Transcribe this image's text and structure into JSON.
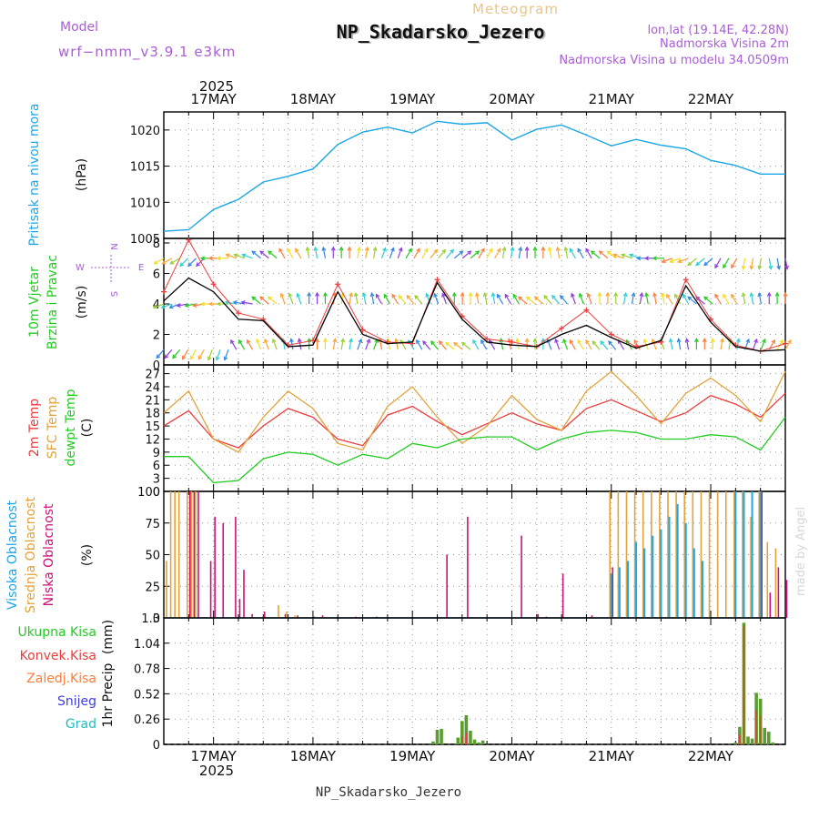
{
  "header": {
    "model_label": "Model",
    "model_name": "wrf−nmm_v3.9.1  e3km",
    "meteogram": "Meteogram",
    "title": "NP_Skadarsko_Jezero",
    "lonlat": "lon,lat (19.14E, 42.28N)",
    "altitude": "Nadmorska Visina 2m",
    "model_altitude": "Nadmorska Visina u modelu 34.0509m",
    "footer": "NP_Skadarsko_Jezero",
    "credit": "made by Angel",
    "year": "2025"
  },
  "colors": {
    "pressure": "#1ca7e6",
    "wind_speed_smooth": "#000000",
    "wind_speed_raw": "#ee3b3b",
    "t2m": "#ee3b3b",
    "sfc": "#e3a23a",
    "dewpt": "#22cc22",
    "cloud_high": "#1ca7e6",
    "cloud_mid": "#e3a23a",
    "cloud_low": "#cc1177",
    "precip_total": "#5a9e2e",
    "precip_conv": "#ee3b3b"
  },
  "chart_data": [
    {
      "type": "line",
      "id": "pressure",
      "ylabel_lines": [
        "Pritisak na nivou mora"
      ],
      "unit": "(hPa)",
      "ylim": [
        1005,
        1022.5
      ],
      "yticks": [
        "1005",
        "1010",
        "1015",
        "1020"
      ],
      "x_days": [
        "17MAY",
        "18MAY",
        "19MAY",
        "20MAY",
        "21MAY",
        "22MAY"
      ],
      "x": [
        0,
        6,
        12,
        18,
        24,
        30,
        36,
        42,
        48,
        54,
        60,
        66,
        72,
        78,
        84,
        90,
        96,
        102,
        108,
        114,
        120,
        126,
        132,
        138,
        144,
        150
      ],
      "series": [
        {
          "name": "MSLP",
          "values": [
            1006.0,
            1006.2,
            1009.0,
            1010.4,
            1012.8,
            1013.6,
            1014.6,
            1018.0,
            1019.7,
            1020.4,
            1019.6,
            1021.2,
            1020.8,
            1021.0,
            1018.6,
            1020.1,
            1020.7,
            1019.3,
            1017.8,
            1018.7,
            1017.9,
            1017.4,
            1015.8,
            1015.1,
            1013.9,
            1013.9
          ]
        }
      ]
    },
    {
      "type": "line",
      "id": "wind",
      "ylabel_lines": [
        "10m Vjetar",
        "Brzina i Pravac"
      ],
      "unit": "(m/s)",
      "ylim": [
        0,
        8.3
      ],
      "yticks": [
        "0",
        "2",
        "4",
        "6",
        "8"
      ],
      "compass": [
        "N",
        "W",
        "E",
        "S"
      ],
      "x": [
        0,
        6,
        12,
        18,
        24,
        30,
        36,
        42,
        48,
        54,
        60,
        66,
        72,
        78,
        84,
        90,
        96,
        102,
        108,
        114,
        120,
        126,
        132,
        138,
        144,
        150
      ],
      "series": [
        {
          "name": "speed",
          "values": [
            4.2,
            5.7,
            4.8,
            3.0,
            2.9,
            1.2,
            1.3,
            4.8,
            2.0,
            1.4,
            1.5,
            5.4,
            3.0,
            1.5,
            1.3,
            1.2,
            2.0,
            2.6,
            1.8,
            1.1,
            1.6,
            5.2,
            2.8,
            1.2,
            0.9,
            1.0
          ]
        },
        {
          "name": "raw",
          "values": [
            4.8,
            8.2,
            5.3,
            3.4,
            3.0,
            1.3,
            1.6,
            5.3,
            2.3,
            1.5,
            1.4,
            5.6,
            3.2,
            1.7,
            1.5,
            1.2,
            2.4,
            3.6,
            2.0,
            1.2,
            1.5,
            5.6,
            3.0,
            1.3,
            0.9,
            1.4
          ]
        }
      ],
      "arrow_rows": [
        {
          "speed": 7.0,
          "angles": [
            210,
            225,
            180,
            160,
            140,
            120,
            100,
            90,
            80,
            70,
            60,
            50,
            40,
            60,
            80,
            90,
            100,
            120,
            140,
            160,
            180,
            200,
            220,
            240,
            260,
            280
          ]
        },
        {
          "speed": 4.0,
          "angles": [
            200,
            190,
            180,
            170,
            140,
            110,
            90,
            80,
            100,
            120,
            130,
            110,
            90,
            100,
            120,
            140,
            130,
            110,
            90,
            80,
            100,
            120,
            140,
            120,
            100,
            90
          ]
        },
        {
          "speed": 1.0,
          "angles": [
            230,
            240,
            250,
            120,
            110,
            100,
            90,
            80,
            70,
            100,
            120,
            130,
            140,
            120,
            100,
            90,
            110,
            120,
            130,
            120,
            110,
            100,
            90,
            80,
            70,
            60
          ]
        }
      ]
    },
    {
      "type": "line",
      "id": "temperature",
      "ylabel_lines": [
        "2m Temp",
        "SFC Temp",
        "dewpt Temp"
      ],
      "unit": "(C)",
      "ylim": [
        0,
        29
      ],
      "yticks": [
        "0",
        "3",
        "6",
        "9",
        "12",
        "15",
        "18",
        "21",
        "24",
        "27"
      ],
      "x": [
        0,
        6,
        12,
        18,
        24,
        30,
        36,
        42,
        48,
        54,
        60,
        66,
        72,
        78,
        84,
        90,
        96,
        102,
        108,
        114,
        120,
        126,
        132,
        138,
        144,
        150
      ],
      "series": [
        {
          "name": "2m Temp",
          "values": [
            15.0,
            18.5,
            12.0,
            10.0,
            15.0,
            19.0,
            17.0,
            12.0,
            10.5,
            17.5,
            19.5,
            16.0,
            13.0,
            15.5,
            18.0,
            15.5,
            14.0,
            19.0,
            21.0,
            18.5,
            16.0,
            18.0,
            22.0,
            20.0,
            17.0,
            22.5
          ]
        },
        {
          "name": "SFC Temp",
          "values": [
            18.0,
            23.0,
            12.0,
            9.0,
            17.0,
            23.0,
            19.0,
            11.0,
            9.5,
            19.5,
            24.0,
            17.0,
            11.0,
            15.0,
            22.0,
            16.5,
            14.0,
            23.0,
            27.5,
            22.0,
            15.5,
            22.5,
            26.0,
            22.0,
            16.0,
            27.5
          ]
        },
        {
          "name": "dewpt Temp",
          "values": [
            8.0,
            8.0,
            2.0,
            2.5,
            7.5,
            9.0,
            8.5,
            6.0,
            8.5,
            7.5,
            11.0,
            10.0,
            12.0,
            12.5,
            12.5,
            9.5,
            12.0,
            13.5,
            14.0,
            13.5,
            12.0,
            12.0,
            13.0,
            12.5,
            9.5,
            17.0
          ]
        }
      ]
    },
    {
      "type": "bar",
      "id": "clouds",
      "ylabel_lines": [
        "Visoka Oblacnost",
        "Srednja Oblacnost",
        "Niska Oblacnost"
      ],
      "unit": "(%)",
      "ylim": [
        0,
        100
      ],
      "yticks": [
        "0",
        "25",
        "50",
        "75",
        "100"
      ],
      "series": [
        {
          "name": "Niska",
          "x": [
            6,
            7,
            8,
            11,
            12,
            14,
            17,
            18,
            19,
            21,
            24,
            29,
            32,
            36,
            38,
            46,
            51,
            68,
            73,
            86,
            90,
            92,
            96,
            103,
            108,
            144,
            146,
            148,
            150
          ],
          "values": [
            100,
            100,
            100,
            45,
            80,
            75,
            80,
            15,
            38,
            3,
            5,
            3,
            2,
            1,
            2,
            1,
            1,
            50,
            80,
            65,
            3,
            1,
            35,
            2,
            40,
            100,
            20,
            40,
            30
          ]
        },
        {
          "name": "Srednja",
          "x": [
            1,
            2,
            3,
            4,
            6,
            7,
            8,
            28,
            30,
            32,
            108,
            110,
            112,
            114,
            116,
            118,
            120,
            122,
            124,
            126,
            128,
            130,
            132,
            134,
            136,
            138,
            140,
            142,
            144,
            146,
            148
          ],
          "values": [
            45,
            100,
            100,
            100,
            100,
            100,
            100,
            10,
            5,
            2,
            100,
            100,
            100,
            100,
            100,
            100,
            100,
            100,
            100,
            100,
            100,
            100,
            100,
            100,
            100,
            100,
            100,
            80,
            100,
            60,
            55
          ]
        },
        {
          "name": "Visoka",
          "x": [
            108,
            110,
            112,
            114,
            116,
            118,
            120,
            122,
            124,
            126,
            128,
            130,
            138,
            140,
            142,
            144
          ],
          "values": [
            35,
            40,
            45,
            60,
            55,
            65,
            70,
            80,
            90,
            75,
            55,
            45,
            100,
            100,
            100,
            100
          ]
        }
      ]
    },
    {
      "type": "bar",
      "id": "precip",
      "ylabel_lines": [
        "1hr Precip",
        "(mm)"
      ],
      "legend": [
        "Ukupna Kisa",
        "Konvek.Kisa",
        "Zaledj.Kisa",
        "Snijeg",
        "Grad"
      ],
      "ylim": [
        0,
        1.3
      ],
      "yticks": [
        "0",
        "0.26",
        "0.52",
        "0.78",
        "1.04",
        "1.3"
      ],
      "series": [
        {
          "name": "Ukupna Kisa",
          "x": [
            65,
            66,
            67,
            71,
            72,
            73,
            74,
            75,
            76,
            77,
            138,
            139,
            140,
            141,
            142,
            143,
            144,
            145,
            146,
            147
          ],
          "values": [
            0.03,
            0.15,
            0.16,
            0.07,
            0.24,
            0.3,
            0.14,
            0.05,
            0.02,
            0.04,
            0.02,
            0.18,
            1.25,
            0.08,
            0.06,
            0.53,
            0.47,
            0.17,
            0.13,
            0.02
          ]
        },
        {
          "name": "Konvek.Kisa",
          "x": [
            72,
            73,
            139,
            140,
            143,
            144
          ],
          "values": [
            0.08,
            0.12,
            0.1,
            1.22,
            0.35,
            0.3
          ]
        }
      ]
    }
  ]
}
